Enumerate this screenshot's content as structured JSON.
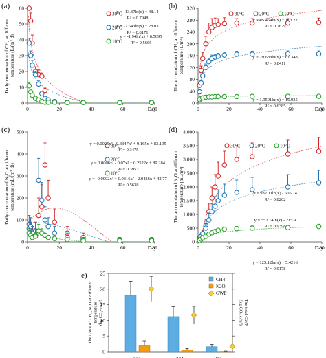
{
  "chart_data": [
    {
      "panel": "(a)",
      "type": "scatter",
      "ylabel": "Daily concentration of CH4 at different temperature (L/(m³·d))",
      "ylabel_lines": [
        "Daily concentration of CH₄ at different",
        "temperature (L/(m³·d)"
      ],
      "xlim": [
        0,
        80
      ],
      "ylim": [
        0,
        60
      ],
      "xticks": [
        0,
        20,
        40,
        60,
        80
      ],
      "yticks": [
        0,
        10,
        20,
        30,
        40,
        50,
        60
      ],
      "xlast_label": "Day",
      "series": [
        {
          "name": "30°C",
          "color": "#d62728",
          "fit": "y = -13.37ln(x) + 48.14",
          "r2": "R² = 0.7948",
          "x": [
            1,
            2,
            3,
            5,
            7,
            9,
            11,
            13,
            17,
            25,
            35,
            58,
            78
          ],
          "y": [
            60,
            52,
            38,
            20,
            18,
            17,
            8,
            2,
            1,
            0.5,
            0.5,
            0.5,
            0.5
          ],
          "err": [
            4,
            5,
            5,
            3,
            3,
            2,
            2,
            1,
            1,
            0.5,
            0.3,
            0.3,
            0.3
          ]
        },
        {
          "name": "20°C",
          "color": "#1f77b4",
          "fit": "y = -7.643ln(x) + 28.03",
          "r2": "R² = 0.8171",
          "x": [
            1,
            2,
            3,
            5,
            7,
            9,
            11,
            13,
            17,
            25,
            35,
            58,
            78
          ],
          "y": [
            38,
            30,
            24,
            18,
            12,
            6,
            3,
            2,
            1,
            0.5,
            0.5,
            0.5,
            0.5
          ],
          "err": [
            3,
            3,
            3,
            2,
            2,
            1,
            1,
            1,
            0.5,
            0.3,
            0.3,
            0.3,
            0.3
          ]
        },
        {
          "name": "10°C",
          "color": "#2ca02c",
          "fit": "y = -1.94ln(x) + 6.5095",
          "r2": "R² = 0.5665",
          "x": [
            1,
            2,
            3,
            5,
            7,
            9,
            11,
            13,
            17,
            25,
            35,
            58,
            78
          ],
          "y": [
            11,
            7,
            5,
            3,
            2,
            1,
            0.5,
            0.5,
            0.5,
            0.3,
            0.3,
            0.3,
            0.3
          ],
          "err": [
            2,
            1,
            1,
            1,
            0.5,
            0.5,
            0.3,
            0.3,
            0.3,
            0.2,
            0.2,
            0.2,
            0.2
          ]
        }
      ]
    },
    {
      "panel": "(b)",
      "type": "scatter",
      "ylabel": "The accumulation of CH4 at different temperature (L/m³)",
      "ylabel_lines": [
        "The accumulation of CH₄ at different",
        "temperature (L/m³)"
      ],
      "xlim": [
        0,
        80
      ],
      "ylim": [
        0,
        320
      ],
      "xticks": [
        0,
        20,
        40,
        60,
        80
      ],
      "yticks": [
        0,
        40,
        80,
        120,
        160,
        200,
        240,
        280,
        320
      ],
      "xlast_label": "Day",
      "series": [
        {
          "name": "30°C",
          "color": "#d62728",
          "fit": "y = 45.454ln(x) + 113.22",
          "r2": "R² = 0.7629",
          "x": [
            1,
            2,
            3,
            5,
            7,
            9,
            11,
            13,
            17,
            25,
            35,
            58,
            78
          ],
          "y": [
            60,
            110,
            150,
            200,
            240,
            255,
            262,
            265,
            268,
            270,
            270,
            270,
            272
          ],
          "err": [
            8,
            15,
            20,
            25,
            30,
            30,
            25,
            20,
            20,
            15,
            15,
            15,
            15
          ]
        },
        {
          "name": "20°C",
          "color": "#1f77b4",
          "fit": "y = 29.688ln(x) + 61.348",
          "r2": "R² = 0.8411",
          "x": [
            1,
            2,
            3,
            5,
            7,
            9,
            11,
            13,
            17,
            25,
            35,
            58,
            78
          ],
          "y": [
            38,
            68,
            92,
            120,
            140,
            150,
            155,
            158,
            162,
            165,
            165,
            166,
            166
          ],
          "err": [
            5,
            8,
            10,
            12,
            12,
            12,
            10,
            10,
            10,
            10,
            10,
            10,
            10
          ]
        },
        {
          "name": "10°C",
          "color": "#2ca02c",
          "fit": "y = 1.9501ln(x) + 16.935",
          "r2": "R² = 0.6385",
          "x": [
            1,
            2,
            3,
            5,
            7,
            9,
            11,
            13,
            17,
            25,
            35,
            58,
            78
          ],
          "y": [
            12,
            16,
            18,
            20,
            21,
            21,
            22,
            22,
            22,
            22,
            23,
            23,
            23
          ],
          "err": [
            3,
            3,
            3,
            3,
            3,
            3,
            3,
            3,
            3,
            3,
            3,
            3,
            3
          ]
        }
      ]
    },
    {
      "panel": "(c)",
      "type": "scatter",
      "ylabel": "Daily concentration of N2O at different temperature (mL/(m³·d))",
      "ylabel_lines": [
        "Daily concentration of N₂O at different",
        "temperature (mL/(m³·d))"
      ],
      "xlim": [
        0,
        80
      ],
      "ylim": [
        0,
        500
      ],
      "xticks": [
        0,
        20,
        40,
        60,
        80
      ],
      "yticks": [
        0,
        100,
        200,
        300,
        400,
        500
      ],
      "xlast_label": "Day",
      "series": [
        {
          "name": "30°C",
          "color": "#d62728",
          "fit": "y = 0.0025x³ - 0.3347x² + 9.165x + 83.195",
          "r2": "R² = 0.3475",
          "x": [
            1,
            2,
            3,
            5,
            7,
            9,
            11,
            13,
            17,
            25,
            35,
            58,
            78
          ],
          "y": [
            80,
            60,
            40,
            50,
            120,
            160,
            350,
            200,
            90,
            40,
            20,
            10,
            8
          ],
          "err": [
            40,
            30,
            30,
            40,
            80,
            100,
            100,
            80,
            60,
            30,
            20,
            10,
            8
          ]
        },
        {
          "name": "20°C",
          "color": "#1f77b4",
          "fit": "y = 0.0006x³ - 0.07x² + 0.2522x + 89.284",
          "r2": "R² = 0.3953",
          "x": [
            1,
            2,
            3,
            5,
            7,
            9,
            11,
            13,
            17,
            25,
            35,
            58,
            78
          ],
          "y": [
            60,
            70,
            40,
            30,
            280,
            190,
            100,
            70,
            40,
            20,
            10,
            5,
            10
          ],
          "err": [
            30,
            40,
            30,
            30,
            100,
            80,
            60,
            40,
            30,
            20,
            10,
            5,
            10
          ]
        },
        {
          "name": "10°C",
          "color": "#2ca02c",
          "fit": "y = -0.0002x³ + 0.0316x² - 2.0436x + 42.77",
          "r2": "R² = 0.5638",
          "x": [
            1,
            2,
            3,
            5,
            7,
            9,
            11,
            13,
            17,
            25,
            35,
            58,
            78
          ],
          "y": [
            40,
            30,
            20,
            25,
            50,
            40,
            30,
            20,
            15,
            10,
            5,
            5,
            5
          ],
          "err": [
            20,
            15,
            10,
            15,
            30,
            20,
            15,
            10,
            10,
            8,
            5,
            5,
            5
          ]
        }
      ]
    },
    {
      "panel": "(d)",
      "type": "scatter",
      "ylabel": "The accumulation of N2O at different temperature (mL/m³)",
      "ylabel_lines": [
        "The accumulation of N₂O at different",
        "temperature (mL/m³)"
      ],
      "xlim": [
        0,
        80
      ],
      "ylim": [
        0,
        4000
      ],
      "xticks": [
        0,
        20,
        40,
        60,
        80
      ],
      "yticks": [
        0,
        500,
        1000,
        1500,
        2000,
        2500,
        3000,
        3500,
        4000
      ],
      "xlast_label": "Day",
      "series": [
        {
          "name": "30°C",
          "color": "#d62728",
          "fit": "y = 932.11ln(x) - 605.74",
          "r2": "R² = 0.8202",
          "x": [
            1,
            2,
            3,
            5,
            7,
            9,
            11,
            13,
            17,
            25,
            35,
            58,
            78
          ],
          "y": [
            150,
            200,
            280,
            600,
            1100,
            1600,
            2000,
            2400,
            2800,
            3000,
            3100,
            3200,
            3300
          ],
          "err": [
            80,
            100,
            150,
            200,
            300,
            400,
            450,
            500,
            500,
            500,
            500,
            500,
            500
          ]
        },
        {
          "name": "20°C",
          "color": "#1f77b4",
          "fit": "y = 552.14ln(x) - 215.9",
          "r2": "R² = 0.9398",
          "x": [
            1,
            2,
            3,
            5,
            7,
            9,
            11,
            13,
            17,
            25,
            35,
            58,
            78
          ],
          "y": [
            100,
            200,
            300,
            500,
            800,
            1100,
            1300,
            1500,
            1700,
            1800,
            1900,
            2000,
            2150
          ],
          "err": [
            50,
            80,
            100,
            150,
            250,
            300,
            350,
            400,
            400,
            450,
            450,
            450,
            450
          ]
        },
        {
          "name": "10°C",
          "color": "#2ca02c",
          "fit": "y = 125.12ln(x) + 5.4216",
          "r2": "R² = 0.9178",
          "x": [
            1,
            2,
            3,
            5,
            7,
            9,
            11,
            13,
            17,
            25,
            35,
            58,
            78
          ],
          "y": [
            50,
            100,
            150,
            200,
            280,
            330,
            380,
            420,
            460,
            480,
            500,
            520,
            560
          ],
          "err": [
            20,
            30,
            40,
            50,
            60,
            70,
            70,
            80,
            80,
            80,
            80,
            80,
            80
          ]
        }
      ]
    },
    {
      "panel": "e)",
      "type": "bar",
      "ylabel": "The GWP of CH4, N2O at different temperature (kg CO2-e/m³)",
      "ylabel_lines": [
        "The GWP of CH₄, N₂O at different",
        "temperature",
        "(kg CO₂-e/m³)"
      ],
      "y2label": "The total GWP (kg CO2-e/m³)",
      "y2label_lines": [
        "The total GWP",
        "(kg CO₂-e/m³)"
      ],
      "categories": [
        "30°C",
        "20°C",
        "10°C"
      ],
      "ylim": [
        0,
        25
      ],
      "yticks": [
        0,
        5,
        10,
        15,
        20,
        25
      ],
      "series": [
        {
          "name": "CH4",
          "color": "#5dade2",
          "values": [
            18,
            11.2,
            1.6
          ],
          "err": [
            4.5,
            3.2,
            0.7
          ]
        },
        {
          "name": "N2O",
          "color": "#f39c12",
          "values": [
            2.1,
            0.5,
            0.1
          ],
          "err": [
            1.4,
            0.5,
            0.1
          ]
        },
        {
          "name": "GWP",
          "color": "#f4d03f",
          "values": [
            20.1,
            11.7,
            1.7
          ],
          "err": [
            4.0,
            2.8,
            0.8
          ]
        }
      ]
    }
  ]
}
